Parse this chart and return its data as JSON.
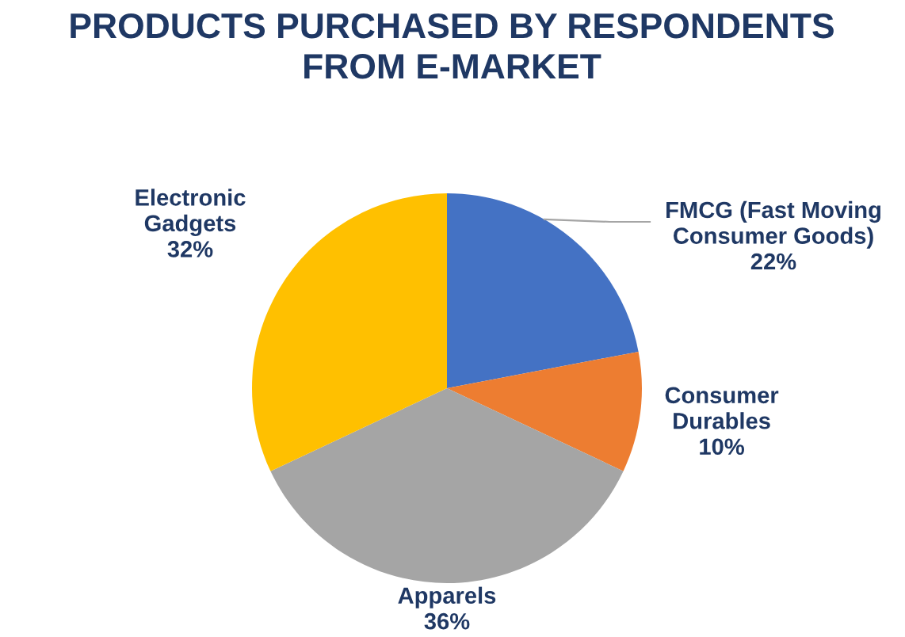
{
  "chart_data": {
    "type": "pie",
    "title": "PRODUCTS PURCHASED BY RESPONDENTS\nFROM E-MARKET",
    "categories": [
      "FMCG (Fast Moving\nConsumer Goods)",
      "Consumer\nDurables",
      "Apparels",
      "Electronic\nGadgets"
    ],
    "values": [
      22,
      10,
      36,
      32
    ],
    "colors": [
      "#4472c4",
      "#ed7d31",
      "#a5a5a5",
      "#ffc000"
    ],
    "value_labels": [
      "22%",
      "10%",
      "36%",
      "32%"
    ]
  }
}
